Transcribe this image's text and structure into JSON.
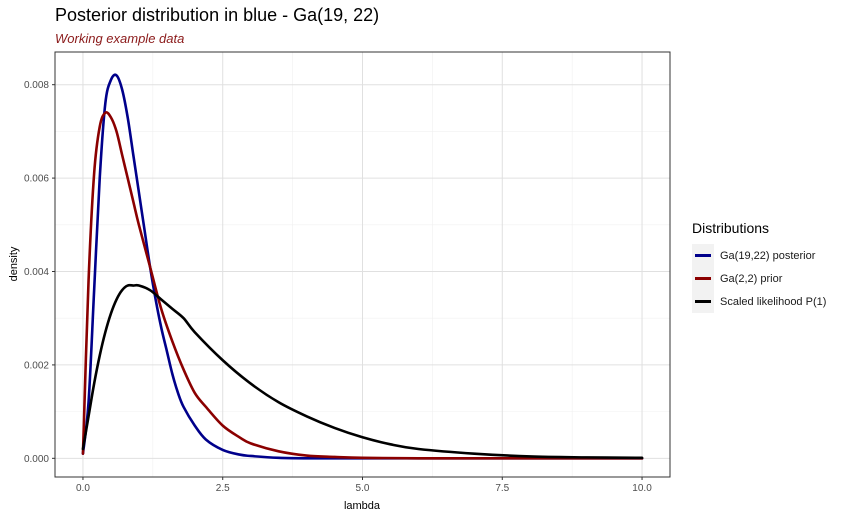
{
  "chart_data": {
    "type": "line",
    "title": "Posterior distribution in blue - Ga(19, 22)",
    "subtitle": "Working example data",
    "xlabel": "lambda",
    "ylabel": "density",
    "xlim": [
      -0.5,
      10.5
    ],
    "ylim": [
      -0.0004,
      0.0087
    ],
    "x_ticks": [
      0.0,
      2.5,
      5.0,
      7.5,
      10.0
    ],
    "x_tick_labels": [
      "0.0",
      "2.5",
      "5.0",
      "7.5",
      "10.0"
    ],
    "y_ticks": [
      0.0,
      0.002,
      0.004,
      0.006,
      0.008
    ],
    "y_tick_labels": [
      "0.000",
      "0.002",
      "0.004",
      "0.006",
      "0.008"
    ],
    "grid": true,
    "legend": {
      "title": "Distributions",
      "position": "right"
    },
    "series": [
      {
        "name": "Ga(19,22) posterior",
        "color": "#00008b",
        "x": [
          0.0,
          0.1,
          0.2,
          0.3,
          0.4,
          0.5,
          0.6,
          0.7,
          0.8,
          0.9,
          1.0,
          1.1,
          1.2,
          1.3,
          1.4,
          1.5,
          1.6,
          1.7,
          1.8,
          2.0,
          2.2,
          2.5,
          2.8,
          3.0,
          3.5,
          4.0,
          5.0,
          6.0,
          8.0,
          10.0
        ],
        "values": [
          0.0001,
          0.0012,
          0.0036,
          0.006,
          0.0076,
          0.0081,
          0.0082,
          0.0079,
          0.0073,
          0.0065,
          0.0057,
          0.0049,
          0.0041,
          0.0034,
          0.0028,
          0.0023,
          0.0018,
          0.0014,
          0.0011,
          0.0007,
          0.0004,
          0.00018,
          8e-05,
          5e-05,
          1e-05,
          0.0,
          0.0,
          0.0,
          0.0,
          0.0
        ]
      },
      {
        "name": "Ga(2,2) prior",
        "color": "#8b0000",
        "x": [
          0.0,
          0.1,
          0.2,
          0.3,
          0.4,
          0.5,
          0.6,
          0.7,
          0.8,
          0.9,
          1.0,
          1.2,
          1.4,
          1.6,
          1.8,
          2.0,
          2.2,
          2.5,
          2.8,
          3.0,
          3.5,
          4.0,
          4.5,
          5.0,
          6.0,
          8.0,
          10.0
        ],
        "values": [
          0.0001,
          0.0038,
          0.0061,
          0.0071,
          0.0074,
          0.0073,
          0.007,
          0.0065,
          0.006,
          0.0055,
          0.005,
          0.0041,
          0.0032,
          0.0025,
          0.0019,
          0.0014,
          0.0011,
          0.0007,
          0.00045,
          0.00032,
          0.00015,
          6e-05,
          3e-05,
          1e-05,
          0.0,
          0.0,
          0.0
        ]
      },
      {
        "name": "Scaled likelihood P(1)",
        "color": "#000000",
        "x": [
          0.0,
          0.1,
          0.2,
          0.3,
          0.4,
          0.5,
          0.6,
          0.7,
          0.8,
          0.9,
          1.0,
          1.2,
          1.4,
          1.6,
          1.8,
          2.0,
          2.5,
          3.0,
          3.5,
          4.0,
          4.5,
          5.0,
          5.5,
          6.0,
          7.0,
          8.0,
          9.0,
          10.0
        ],
        "values": [
          0.0002,
          0.0009,
          0.0016,
          0.0022,
          0.0027,
          0.0031,
          0.0034,
          0.0036,
          0.0037,
          0.0037,
          0.0037,
          0.0036,
          0.0034,
          0.0032,
          0.003,
          0.0027,
          0.0021,
          0.0016,
          0.0012,
          0.0009,
          0.00065,
          0.00045,
          0.0003,
          0.0002,
          0.0001,
          4e-05,
          2e-05,
          1e-05
        ]
      }
    ]
  }
}
